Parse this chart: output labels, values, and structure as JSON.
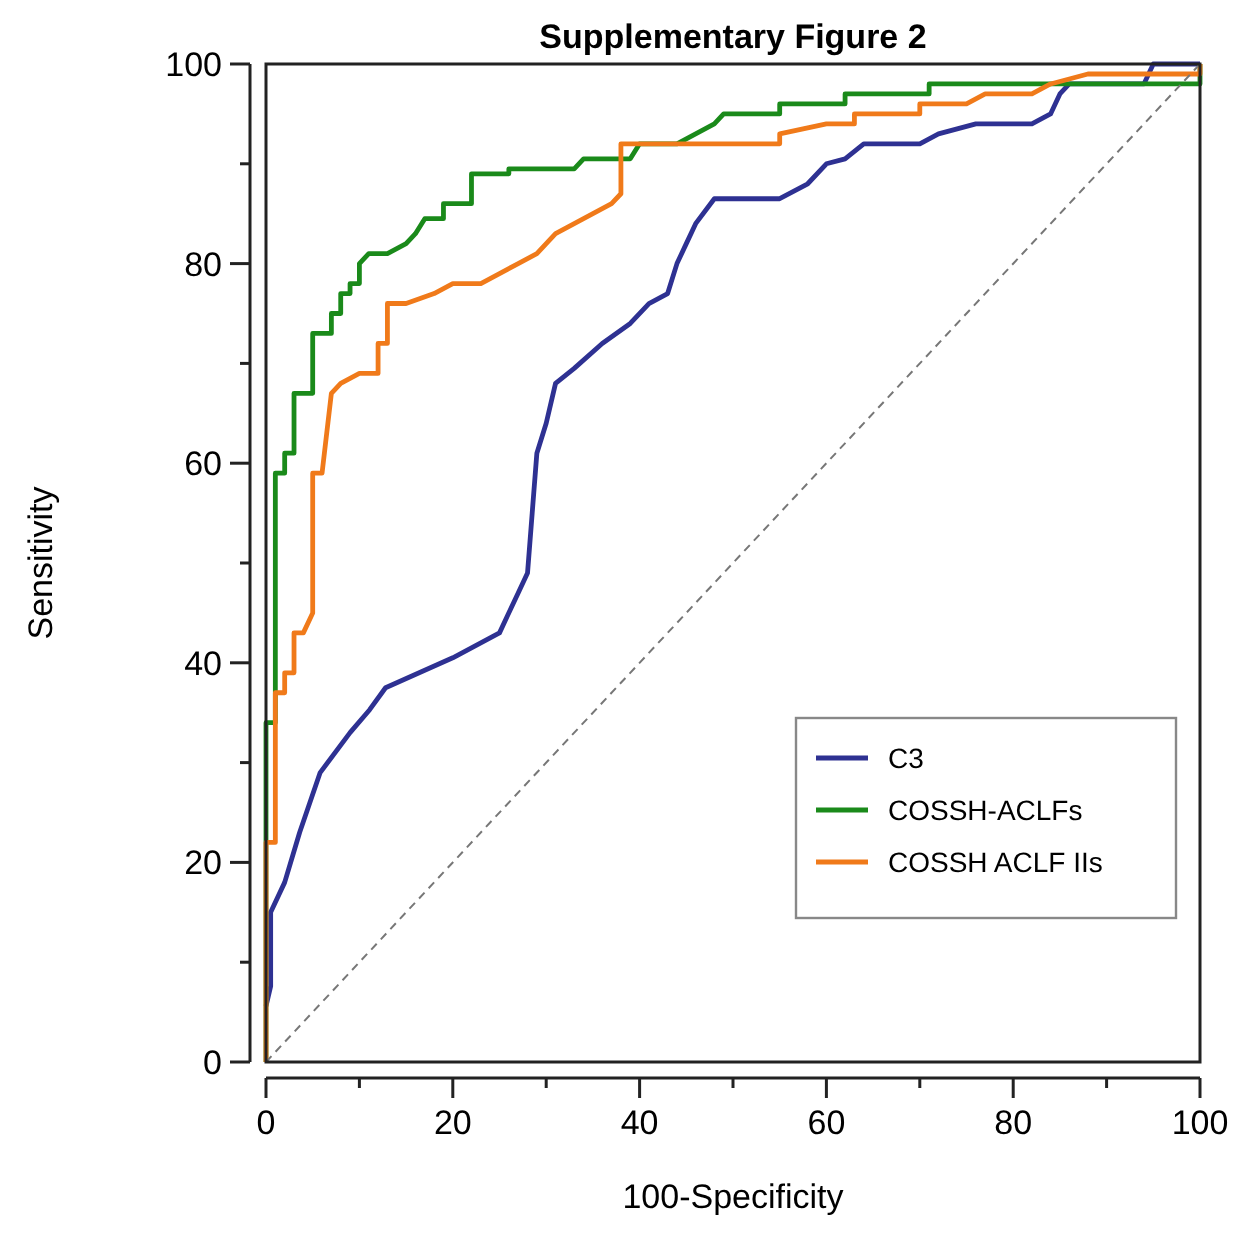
{
  "chart_data": {
    "type": "line",
    "title": "Supplementary Figure 2",
    "xlabel": "100-Specificity",
    "ylabel": "Sensitivity",
    "xlim": [
      0,
      100
    ],
    "ylim": [
      0,
      100
    ],
    "xticks": [
      0,
      {
        "value": 10,
        "label": null
      },
      20,
      {
        "value": 30,
        "label": null
      },
      40,
      {
        "value": 50,
        "label": null
      },
      60,
      {
        "value": 70,
        "label": null
      },
      80,
      {
        "value": 90,
        "label": null
      },
      100
    ],
    "yticks": [
      0,
      {
        "value": 10,
        "label": null
      },
      20,
      {
        "value": 30,
        "label": null
      },
      40,
      {
        "value": 50,
        "label": null
      },
      60,
      {
        "value": 70,
        "label": null
      },
      80,
      {
        "value": 90,
        "label": null
      },
      100
    ],
    "grid": false,
    "legend": "bottom right",
    "series": [
      {
        "name": "C3",
        "color": "#2e3192",
        "x": [
          0,
          0.5,
          0.5,
          2,
          3.6,
          5.8,
          9,
          11.1,
          12.8,
          20,
          25,
          27,
          28,
          28.5,
          29,
          30,
          31,
          33,
          36,
          39,
          41,
          43,
          44,
          45,
          46,
          48,
          55,
          58,
          60,
          62,
          64,
          70,
          72,
          76,
          82,
          84,
          85,
          86,
          94,
          95,
          100
        ],
        "values": [
          5.6,
          7.6,
          15,
          18,
          23,
          29,
          33,
          35.3,
          37.5,
          40.5,
          43,
          47,
          49,
          55,
          61,
          64,
          68,
          69.5,
          72,
          74,
          76,
          77,
          80,
          82,
          84,
          86.5,
          86.5,
          88,
          90,
          90.5,
          92,
          92,
          93,
          94,
          94,
          95,
          97,
          98,
          98,
          100,
          100
        ]
      },
      {
        "name": "COSSH-ACLFs",
        "color": "#1a8a1a",
        "x": [
          0,
          0,
          0,
          1,
          1,
          2,
          2,
          3,
          3,
          5,
          5,
          7,
          7,
          8,
          8,
          9,
          9,
          10,
          10,
          11,
          13,
          15,
          16,
          17,
          19,
          19,
          22,
          22,
          26,
          26,
          33,
          34,
          39,
          40,
          44,
          46,
          48,
          49,
          55,
          55,
          62,
          62,
          71,
          71,
          100,
          100
        ],
        "values": [
          0,
          22,
          34,
          34,
          59,
          59,
          61,
          61,
          67,
          67,
          73,
          73,
          75,
          75,
          77,
          77,
          78,
          78,
          80,
          81,
          81,
          82,
          83,
          84.5,
          84.5,
          86,
          86,
          89,
          89,
          89.5,
          89.5,
          90.5,
          90.5,
          92,
          92,
          93,
          94,
          95,
          95,
          96,
          96,
          97,
          97,
          98,
          98,
          100
        ]
      },
      {
        "name": "COSSH ACLF IIs",
        "color": "#f07a1a",
        "x": [
          0,
          0,
          1,
          1,
          2,
          2,
          3,
          3,
          4,
          5,
          5,
          6,
          7,
          8,
          10,
          12,
          12,
          13,
          13,
          15,
          18,
          20,
          23,
          25,
          27,
          29,
          30,
          31,
          33,
          35,
          37,
          38,
          38,
          55,
          55,
          60,
          63,
          63,
          70,
          70,
          75,
          77,
          82,
          84,
          88,
          100,
          100
        ],
        "values": [
          0,
          22,
          22,
          37,
          37,
          39,
          39,
          43,
          43,
          45,
          59,
          59,
          67,
          68,
          69,
          69,
          72,
          72,
          76,
          76,
          77,
          78,
          78,
          79,
          80,
          81,
          82,
          83,
          84,
          85,
          86,
          87,
          92,
          92,
          93,
          94,
          94,
          95,
          95,
          96,
          96,
          97,
          97,
          98,
          99,
          99,
          100
        ]
      },
      {
        "color": "#777777",
        "line_style": "dashed",
        "x": [
          0,
          100
        ],
        "values": [
          0,
          100
        ]
      }
    ]
  }
}
